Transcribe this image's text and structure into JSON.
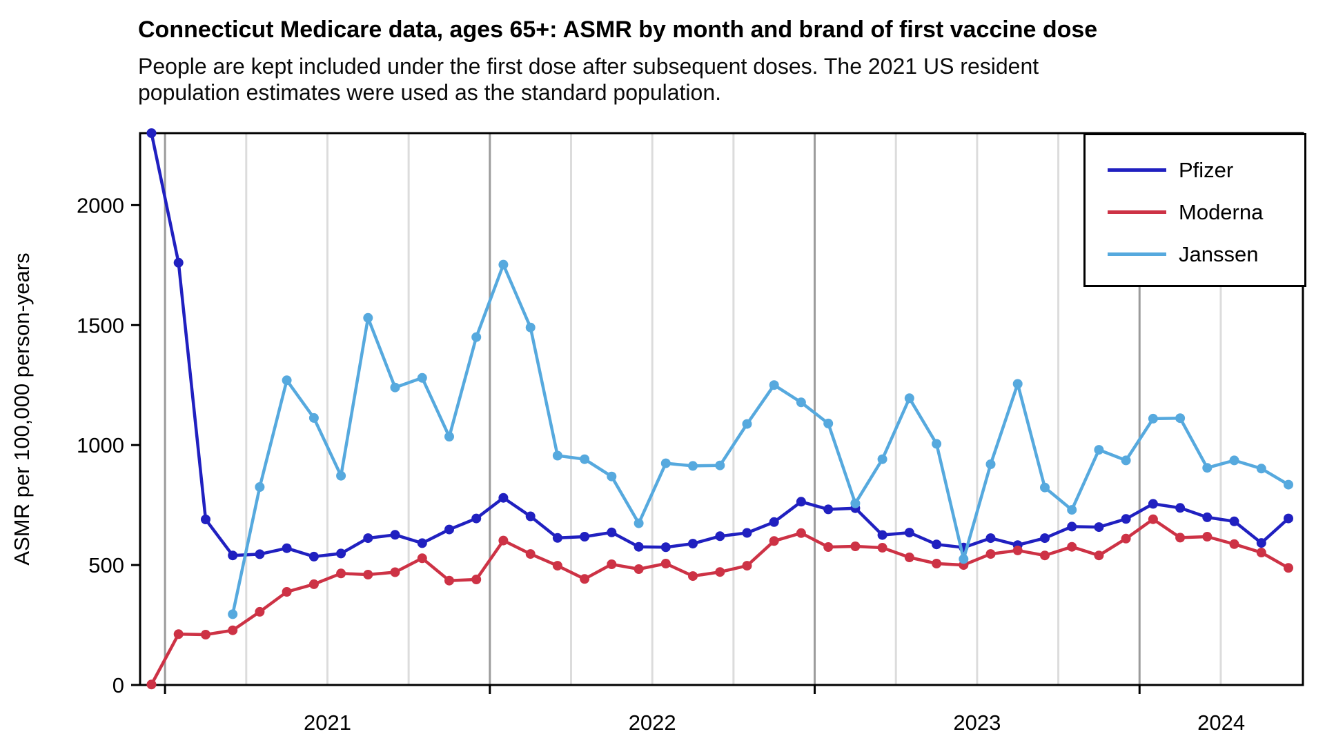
{
  "title": "Connecticut Medicare data, ages 65+: ASMR by month and brand of first vaccine dose",
  "subtitle_line1": "People are kept included under the first dose after subsequent doses. The 2021 US resident",
  "subtitle_line2": "population estimates were used as the standard population.",
  "legend": {
    "items": [
      {
        "label": "Pfizer",
        "color": "#2020C0"
      },
      {
        "label": "Moderna",
        "color": "#CD3245"
      },
      {
        "label": "Janssen",
        "color": "#56A9DE"
      }
    ]
  },
  "y_axis": {
    "label": "ASMR per 100,000 person-years",
    "ticks": [
      0,
      500,
      1000,
      1500,
      2000
    ]
  },
  "x_axis": {
    "years": [
      {
        "label": "2021",
        "start_month_index": 1
      },
      {
        "label": "2022",
        "start_month_index": 13
      },
      {
        "label": "2023",
        "start_month_index": 25
      },
      {
        "label": "2024",
        "start_month_index": 37
      }
    ]
  },
  "chart_data": {
    "type": "line",
    "title": "Connecticut Medicare data, ages 65+: ASMR by month and brand of first vaccine dose",
    "xlabel": "",
    "ylabel": "ASMR per 100,000 person-years",
    "ylim": [
      0,
      2300
    ],
    "grid": {
      "vertical_minor_month_indices": [
        4,
        7,
        10,
        16,
        19,
        22,
        28,
        31,
        34,
        40
      ],
      "vertical_major_month_indices": [
        1,
        13,
        25,
        37
      ],
      "minor_color": "#DCDCDC",
      "major_color": "#9B9B9B"
    },
    "legend_position": "top-right",
    "x": [
      "2020-12",
      "2021-01",
      "2021-02",
      "2021-03",
      "2021-04",
      "2021-05",
      "2021-06",
      "2021-07",
      "2021-08",
      "2021-09",
      "2021-10",
      "2021-11",
      "2021-12",
      "2022-01",
      "2022-02",
      "2022-03",
      "2022-04",
      "2022-05",
      "2022-06",
      "2022-07",
      "2022-08",
      "2022-09",
      "2022-10",
      "2022-11",
      "2022-12",
      "2023-01",
      "2023-02",
      "2023-03",
      "2023-04",
      "2023-05",
      "2023-06",
      "2023-07",
      "2023-08",
      "2023-09",
      "2023-10",
      "2023-11",
      "2023-12",
      "2024-01",
      "2024-02",
      "2024-03",
      "2024-04",
      "2024-05",
      "2024-06"
    ],
    "series": [
      {
        "name": "Pfizer",
        "color": "#2020C0",
        "values": [
          2300,
          1760,
          690,
          540,
          545,
          570,
          535,
          548,
          612,
          626,
          591,
          648,
          694,
          780,
          703,
          613,
          618,
          636,
          576,
          574,
          589,
          620,
          634,
          679,
          764,
          732,
          737,
          625,
          635,
          586,
          573,
          612,
          583,
          612,
          660,
          658,
          692,
          755,
          738,
          699,
          682,
          592,
          694
        ]
      },
      {
        "name": "Moderna",
        "color": "#CD3245",
        "values": [
          2,
          212,
          210,
          228,
          305,
          388,
          420,
          465,
          460,
          470,
          528,
          435,
          440,
          602,
          546,
          497,
          442,
          503,
          483,
          506,
          454,
          471,
          497,
          600,
          633,
          575,
          578,
          572,
          532,
          506,
          500,
          546,
          561,
          540,
          576,
          540,
          610,
          691,
          614,
          618,
          587,
          552,
          488
        ]
      },
      {
        "name": "Janssen",
        "color": "#56A9DE",
        "values": [
          null,
          null,
          null,
          295,
          825,
          1270,
          1113,
          872,
          1530,
          1240,
          1280,
          1035,
          1450,
          1752,
          1490,
          956,
          941,
          869,
          674,
          924,
          913,
          915,
          1088,
          1250,
          1178,
          1090,
          757,
          941,
          1195,
          1005,
          525,
          920,
          1255,
          823,
          730,
          980,
          936,
          1110,
          1112,
          905,
          936,
          902,
          835
        ]
      }
    ]
  }
}
